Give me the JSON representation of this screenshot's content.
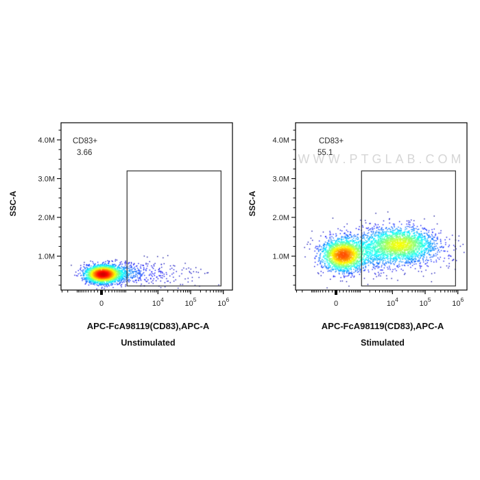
{
  "watermark": {
    "text": "WWW.PTGLAB.COM",
    "color": "#d6d6d6"
  },
  "chart_data": [
    {
      "type": "scatter",
      "title": "Unstimulated",
      "xlabel": "APC-FcA98119(CD83),APC-A",
      "ylabel": "SSC-A",
      "x_scale": {
        "type": "biexponential",
        "visible_range": [
          -3000,
          1500000
        ]
      },
      "y_scale": {
        "type": "linear",
        "visible_range": [
          120000,
          4440000
        ]
      },
      "x_ticks": [
        {
          "value": 0,
          "label": "0",
          "bold": true
        },
        {
          "value": 10000,
          "base": "10",
          "exp": "4"
        },
        {
          "value": 100000,
          "base": "10",
          "exp": "5"
        },
        {
          "value": 1000000,
          "base": "10",
          "exp": "6"
        }
      ],
      "y_ticks": [
        {
          "value": 1000000,
          "label": "1.0M"
        },
        {
          "value": 2000000,
          "label": "2.0M"
        },
        {
          "value": 3000000,
          "label": "3.0M"
        },
        {
          "value": 4000000,
          "label": "4.0M"
        }
      ],
      "gate": {
        "name": "CD83+",
        "percent": "3.66",
        "x_min": 1100,
        "x_max": 850000,
        "y_min": 230000,
        "y_max": 3200000
      },
      "populations": [
        {
          "x": 30,
          "x_spread": 0.62,
          "ssc": 530000,
          "ssc_spread": 115000,
          "count": 2400
        },
        {
          "x": 600,
          "x_spread": 1.0,
          "ssc": 560000,
          "ssc_spread": 130000,
          "count": 450
        },
        {
          "x": 6000,
          "x_spread": 1.3,
          "ssc": 550000,
          "ssc_spread": 180000,
          "count": 110
        },
        {
          "x": 60000,
          "x_spread": 1.4,
          "ssc": 500000,
          "ssc_spread": 150000,
          "count": 35
        }
      ],
      "density_cap": 0.92,
      "has_watermark": false
    },
    {
      "type": "scatter",
      "title": "Stimulated",
      "xlabel": "APC-FcA98119(CD83),APC-A",
      "ylabel": "SSC-A",
      "x_scale": {
        "type": "biexponential",
        "visible_range": [
          -3000,
          1500000
        ]
      },
      "y_scale": {
        "type": "linear",
        "visible_range": [
          120000,
          4440000
        ]
      },
      "x_ticks": [
        {
          "value": 0,
          "label": "0",
          "bold": true
        },
        {
          "value": 10000,
          "base": "10",
          "exp": "4"
        },
        {
          "value": 100000,
          "base": "10",
          "exp": "5"
        },
        {
          "value": 1000000,
          "base": "10",
          "exp": "6"
        }
      ],
      "y_ticks": [
        {
          "value": 1000000,
          "label": "1.0M"
        },
        {
          "value": 2000000,
          "label": "2.0M"
        },
        {
          "value": 3000000,
          "label": "3.0M"
        },
        {
          "value": 4000000,
          "label": "4.0M"
        }
      ],
      "gate": {
        "name": "CD83+",
        "percent": "55.1",
        "x_min": 1100,
        "x_max": 850000,
        "y_min": 230000,
        "y_max": 3200000
      },
      "populations": [
        {
          "x": 190,
          "x_spread": 0.75,
          "ssc": 1020000,
          "ssc_spread": 200000,
          "count": 2000
        },
        {
          "x": 18000,
          "x_spread": 1.15,
          "ssc": 1300000,
          "ssc_spread": 220000,
          "count": 2000
        },
        {
          "x": 1800,
          "x_spread": 1.6,
          "ssc": 1150000,
          "ssc_spread": 280000,
          "count": 900
        },
        {
          "x": 150000,
          "x_spread": 1.0,
          "ssc": 1100000,
          "ssc_spread": 250000,
          "count": 120
        },
        {
          "x": 600000,
          "x_spread": 0.6,
          "ssc": 1200000,
          "ssc_spread": 300000,
          "count": 10
        }
      ],
      "density_cap": 0.8,
      "has_watermark": true
    }
  ]
}
